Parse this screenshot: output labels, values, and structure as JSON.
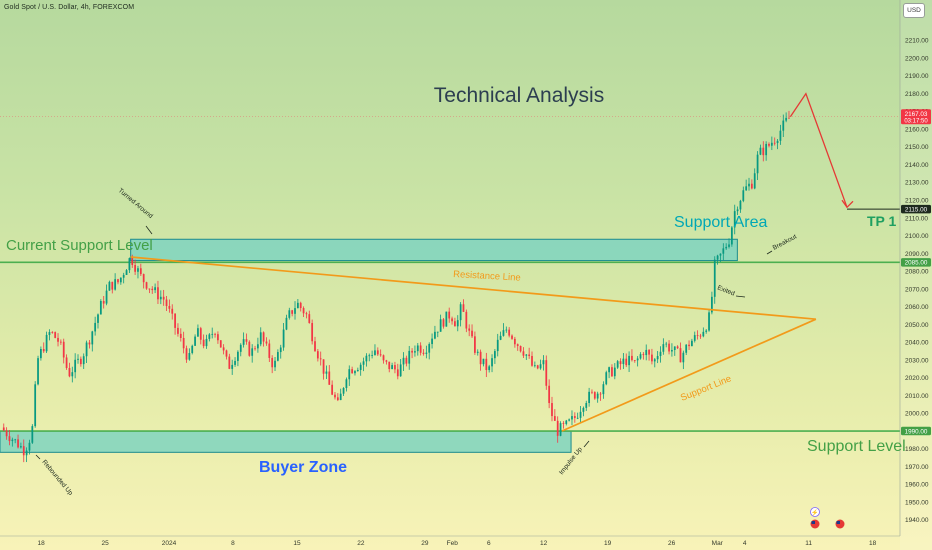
{
  "header": {
    "symbol_title": "Gold Spot / U.S. Dollar, 4h, FOREXCOM",
    "currency": "USD"
  },
  "annotations": {
    "main_title": "Technical Analysis",
    "support_area": "Support Area",
    "current_support": "Current Support Level",
    "resistance_line": "Resistance Line",
    "support_line": "Support Line",
    "support_level": "Support Level",
    "buyer_zone": "Buyer Zone",
    "tp1": "TP 1",
    "turned_around": "Turned Around",
    "rebounded_up": "Rebounded Up",
    "impulse_up": "Impulse Up",
    "exited": "Exited",
    "breakout": "Breakout"
  },
  "price_tags": {
    "current_price": "2167.03",
    "countdown": "03:17:50",
    "tp_price": "2115.00",
    "resistance_price": "2085.00",
    "support_price": "1990.00"
  },
  "colors": {
    "bull": "#089981",
    "bear": "#f23645",
    "zone_fill": "#7fd3c0",
    "zone_border": "#1b8b8e",
    "trend": "#f29a1a",
    "level_line": "#4caf50",
    "projection": "#e53935",
    "title": "#2c3e50",
    "support_area_text": "#00a7b5",
    "green_text": "#43a047",
    "buyer_text": "#2962ff"
  },
  "chart_data": {
    "type": "candlestick",
    "title": "Technical Analysis",
    "ylim": [
      1932,
      2226
    ],
    "y_ticks": [
      1940,
      1950,
      1960,
      1970,
      1980,
      1990,
      2000,
      2010,
      2020,
      2030,
      2040,
      2050,
      2060,
      2070,
      2080,
      2090,
      2100,
      2110,
      2120,
      2130,
      2140,
      2150,
      2160,
      2170,
      2180,
      2190,
      2200,
      2210
    ],
    "y_tick_labels": [
      "1940.00",
      "1950.00",
      "1960.00",
      "1970.00",
      "1980.00",
      "1990.00",
      "2000.00",
      "2010.00",
      "2020.00",
      "2030.00",
      "2040.00",
      "2050.00",
      "2060.00",
      "2070.00",
      "2080.00",
      "2090.00",
      "2100.00",
      "2110.00",
      "2120.00",
      "2130.00",
      "2140.00",
      "2150.00",
      "2160.00",
      "2170.00",
      "2180.00",
      "2190.00",
      "2200.00",
      "2210.00"
    ],
    "x_tick_labels": [
      "18",
      "25",
      "2024",
      "8",
      "15",
      "22",
      "29",
      "Feb",
      "6",
      "12",
      "19",
      "26",
      "Mar",
      "4",
      "11",
      "18"
    ],
    "x_tick_days": [
      18,
      25,
      32,
      39,
      46,
      53,
      60,
      63,
      67,
      73,
      80,
      87,
      92,
      95,
      102,
      109
    ],
    "x_day_range": [
      13.5,
      112
    ],
    "price_path": [
      {
        "day": 13.6,
        "price": 1992
      },
      {
        "day": 15,
        "price": 1985
      },
      {
        "day": 16.2,
        "price": 1979
      },
      {
        "day": 17,
        "price": 1989
      },
      {
        "day": 17.6,
        "price": 2030
      },
      {
        "day": 19,
        "price": 2046
      },
      {
        "day": 20,
        "price": 2040
      },
      {
        "day": 21,
        "price": 2022
      },
      {
        "day": 22.5,
        "price": 2032
      },
      {
        "day": 23.5,
        "price": 2045
      },
      {
        "day": 24.5,
        "price": 2060
      },
      {
        "day": 25.5,
        "price": 2072
      },
      {
        "day": 26.5,
        "price": 2074
      },
      {
        "day": 27.8,
        "price": 2088
      },
      {
        "day": 29,
        "price": 2076
      },
      {
        "day": 30.5,
        "price": 2068
      },
      {
        "day": 31.5,
        "price": 2064
      },
      {
        "day": 33,
        "price": 2044
      },
      {
        "day": 34.2,
        "price": 2030
      },
      {
        "day": 35,
        "price": 2046
      },
      {
        "day": 36,
        "price": 2038
      },
      {
        "day": 37,
        "price": 2048
      },
      {
        "day": 38.5,
        "price": 2026
      },
      {
        "day": 40,
        "price": 2040
      },
      {
        "day": 41,
        "price": 2034
      },
      {
        "day": 42,
        "price": 2044
      },
      {
        "day": 43.5,
        "price": 2026
      },
      {
        "day": 45,
        "price": 2054
      },
      {
        "day": 46,
        "price": 2062
      },
      {
        "day": 47,
        "price": 2056
      },
      {
        "day": 48,
        "price": 2038
      },
      {
        "day": 49.5,
        "price": 2016
      },
      {
        "day": 50.5,
        "price": 2004
      },
      {
        "day": 51.5,
        "price": 2024
      },
      {
        "day": 53,
        "price": 2028
      },
      {
        "day": 54.5,
        "price": 2036
      },
      {
        "day": 55.5,
        "price": 2028
      },
      {
        "day": 57,
        "price": 2024
      },
      {
        "day": 58,
        "price": 2030
      },
      {
        "day": 59,
        "price": 2038
      },
      {
        "day": 60,
        "price": 2036
      },
      {
        "day": 61,
        "price": 2046
      },
      {
        "day": 62,
        "price": 2052
      },
      {
        "day": 62.8,
        "price": 2056
      },
      {
        "day": 63.5,
        "price": 2050
      },
      {
        "day": 64,
        "price": 2060
      },
      {
        "day": 65,
        "price": 2042
      },
      {
        "day": 66,
        "price": 2030
      },
      {
        "day": 67,
        "price": 2024
      },
      {
        "day": 68,
        "price": 2040
      },
      {
        "day": 69,
        "price": 2048
      },
      {
        "day": 70,
        "price": 2040
      },
      {
        "day": 71,
        "price": 2034
      },
      {
        "day": 72,
        "price": 2024
      },
      {
        "day": 73,
        "price": 2028
      },
      {
        "day": 73.6,
        "price": 2004
      },
      {
        "day": 74.5,
        "price": 1990
      },
      {
        "day": 75.5,
        "price": 1993
      },
      {
        "day": 76.5,
        "price": 1998
      },
      {
        "day": 77.5,
        "price": 2008
      },
      {
        "day": 79,
        "price": 2012
      },
      {
        "day": 80,
        "price": 2022
      },
      {
        "day": 81,
        "price": 2026
      },
      {
        "day": 82,
        "price": 2030
      },
      {
        "day": 83,
        "price": 2028
      },
      {
        "day": 84,
        "price": 2036
      },
      {
        "day": 85,
        "price": 2028
      },
      {
        "day": 86,
        "price": 2040
      },
      {
        "day": 87,
        "price": 2036
      },
      {
        "day": 88,
        "price": 2032
      },
      {
        "day": 89,
        "price": 2040
      },
      {
        "day": 90,
        "price": 2044
      },
      {
        "day": 90.8,
        "price": 2050
      },
      {
        "day": 91.3,
        "price": 2056
      },
      {
        "day": 91.6,
        "price": 2082
      },
      {
        "day": 92.5,
        "price": 2090
      },
      {
        "day": 93.3,
        "price": 2098
      },
      {
        "day": 94,
        "price": 2116
      },
      {
        "day": 95,
        "price": 2126
      },
      {
        "day": 95.8,
        "price": 2130
      },
      {
        "day": 96.5,
        "price": 2146
      },
      {
        "day": 97.5,
        "price": 2150
      },
      {
        "day": 98.5,
        "price": 2156
      },
      {
        "day": 99.5,
        "price": 2164
      },
      {
        "day": 100,
        "price": 2167
      }
    ],
    "zones": [
      {
        "name": "Support Area",
        "day_start": 27.8,
        "day_end": 94.2,
        "price_low": 2086,
        "price_high": 2098
      },
      {
        "name": "Buyer Zone",
        "day_start": 13.5,
        "day_end": 76,
        "price_low": 1978,
        "price_high": 1990
      }
    ],
    "horizontal_levels": [
      {
        "name": "resistance",
        "price": 2085
      },
      {
        "name": "support",
        "price": 1990
      },
      {
        "name": "tp",
        "price": 2115
      },
      {
        "name": "current",
        "price": 2167
      }
    ],
    "trend_lines": [
      {
        "name": "Resistance Line",
        "points": [
          {
            "day": 27.8,
            "price": 2088
          },
          {
            "day": 102.8,
            "price": 2053
          }
        ]
      },
      {
        "name": "Support Line",
        "points": [
          {
            "day": 75,
            "price": 1990
          },
          {
            "day": 102.8,
            "price": 2053
          }
        ]
      }
    ],
    "projection": [
      {
        "day": 100,
        "price": 2167
      },
      {
        "day": 101.7,
        "price": 2180
      },
      {
        "day": 106.2,
        "price": 2116
      }
    ]
  }
}
